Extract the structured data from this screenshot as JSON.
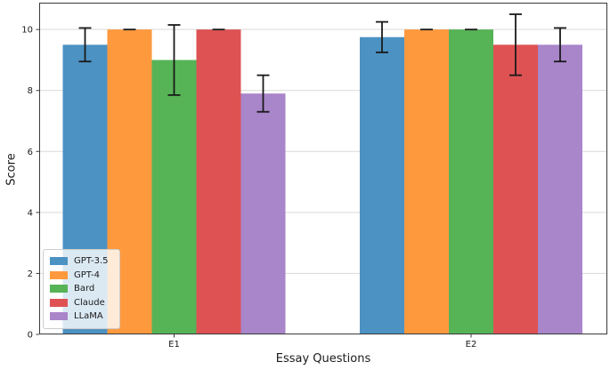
{
  "chart_data": {
    "type": "bar",
    "title": "",
    "xlabel": "Essay Questions",
    "ylabel": "Score",
    "categories": [
      "E1",
      "E2"
    ],
    "yticks": [
      0,
      2,
      4,
      6,
      8,
      10
    ],
    "ylim": [
      0,
      10.88
    ],
    "grid": "horizontal",
    "legend_position": "lower left",
    "error_bar_color": "#1a1a1a",
    "series": [
      {
        "name": "GPT-3.5",
        "color": "#4C92C3",
        "values": [
          9.5,
          9.75
        ],
        "errors": [
          0.55,
          0.5
        ]
      },
      {
        "name": "GPT-4",
        "color": "#FF993E",
        "values": [
          10.0,
          10.0
        ],
        "errors": [
          0.0,
          0.0
        ]
      },
      {
        "name": "Bard",
        "color": "#56B356",
        "values": [
          9.0,
          10.0
        ],
        "errors": [
          1.15,
          0.0
        ]
      },
      {
        "name": "Claude",
        "color": "#DE5253",
        "values": [
          10.0,
          9.5
        ],
        "errors": [
          0.0,
          1.0
        ]
      },
      {
        "name": "LLaMA",
        "color": "#A985CA",
        "values": [
          7.9,
          9.5
        ],
        "errors": [
          0.6,
          0.55
        ]
      }
    ]
  }
}
